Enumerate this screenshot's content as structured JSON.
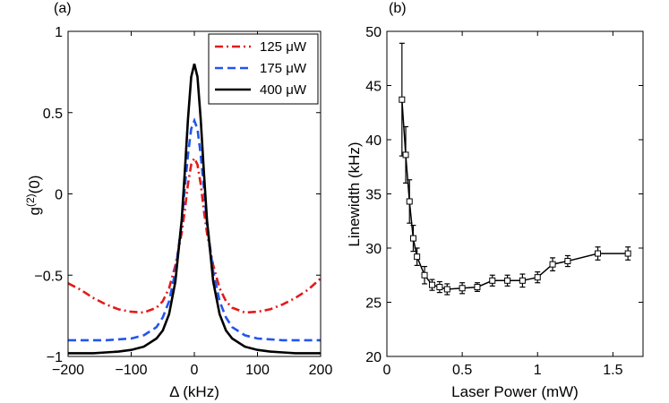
{
  "chart_data": [
    {
      "type": "line",
      "panel_label": "(a)",
      "xlabel": "Δ (kHz)",
      "ylabel_main": "g",
      "ylabel_sup": "(2)",
      "ylabel_tail": "(0)",
      "xlim": [
        -200,
        200
      ],
      "ylim": [
        -1,
        1
      ],
      "xticks": [
        -200,
        -100,
        0,
        100,
        200
      ],
      "xtick_labels": [
        "−200",
        "−100",
        "0",
        "100",
        "200"
      ],
      "yticks": [
        -1,
        -0.5,
        0,
        0.5,
        1
      ],
      "ytick_labels": [
        "−1",
        "−0.5",
        "0",
        "0.5",
        "1"
      ],
      "legend_position": "top-right",
      "series": [
        {
          "name": "125 μW",
          "color": "#e41a1a",
          "style": "dashdot",
          "x": [
            -200,
            -180,
            -160,
            -140,
            -120,
            -100,
            -80,
            -60,
            -50,
            -40,
            -30,
            -20,
            -15,
            -10,
            -5,
            0,
            5,
            10,
            15,
            20,
            30,
            40,
            50,
            60,
            80,
            100,
            120,
            140,
            160,
            180,
            200
          ],
          "y": [
            -0.55,
            -0.59,
            -0.64,
            -0.68,
            -0.71,
            -0.725,
            -0.73,
            -0.7,
            -0.66,
            -0.58,
            -0.44,
            -0.24,
            -0.1,
            0.06,
            0.18,
            0.22,
            0.18,
            0.06,
            -0.1,
            -0.24,
            -0.44,
            -0.58,
            -0.66,
            -0.7,
            -0.73,
            -0.725,
            -0.71,
            -0.68,
            -0.64,
            -0.59,
            -0.52
          ]
        },
        {
          "name": "175 μW",
          "color": "#2255ee",
          "style": "dashed",
          "x": [
            -200,
            -180,
            -160,
            -140,
            -120,
            -100,
            -80,
            -60,
            -50,
            -40,
            -30,
            -20,
            -15,
            -10,
            -5,
            0,
            5,
            10,
            15,
            20,
            30,
            40,
            50,
            60,
            80,
            100,
            120,
            140,
            160,
            180,
            200
          ],
          "y": [
            -0.9,
            -0.9,
            -0.9,
            -0.9,
            -0.895,
            -0.89,
            -0.87,
            -0.82,
            -0.76,
            -0.66,
            -0.48,
            -0.18,
            0.04,
            0.24,
            0.4,
            0.45,
            0.4,
            0.24,
            0.04,
            -0.18,
            -0.48,
            -0.66,
            -0.76,
            -0.82,
            -0.87,
            -0.89,
            -0.895,
            -0.9,
            -0.9,
            -0.9,
            -0.9
          ]
        },
        {
          "name": "400 μW",
          "color": "#000000",
          "style": "solid",
          "x": [
            -200,
            -180,
            -160,
            -140,
            -120,
            -100,
            -80,
            -60,
            -50,
            -40,
            -30,
            -20,
            -15,
            -10,
            -5,
            0,
            5,
            10,
            15,
            20,
            30,
            40,
            50,
            60,
            80,
            100,
            120,
            140,
            160,
            180,
            200
          ],
          "y": [
            -0.98,
            -0.98,
            -0.98,
            -0.975,
            -0.97,
            -0.96,
            -0.94,
            -0.89,
            -0.84,
            -0.74,
            -0.54,
            -0.16,
            0.14,
            0.46,
            0.72,
            0.8,
            0.72,
            0.46,
            0.14,
            -0.16,
            -0.54,
            -0.74,
            -0.84,
            -0.89,
            -0.94,
            -0.96,
            -0.97,
            -0.975,
            -0.98,
            -0.98,
            -0.98
          ]
        }
      ]
    },
    {
      "type": "line",
      "panel_label": "(b)",
      "xlabel": "Laser Power (mW)",
      "ylabel": "Linewidth (kHz)",
      "xlim": [
        0,
        1.7
      ],
      "ylim": [
        20,
        50
      ],
      "xticks": [
        0,
        0.5,
        1,
        1.5
      ],
      "xtick_labels": [
        "0",
        "0.5",
        "1",
        "1.5"
      ],
      "yticks": [
        20,
        25,
        30,
        35,
        40,
        45,
        50
      ],
      "ytick_labels": [
        "20",
        "25",
        "30",
        "35",
        "40",
        "45",
        "50"
      ],
      "series": [
        {
          "name": "Linewidth",
          "color": "#000000",
          "marker": "square",
          "x": [
            0.1,
            0.125,
            0.15,
            0.175,
            0.2,
            0.25,
            0.3,
            0.35,
            0.4,
            0.5,
            0.6,
            0.7,
            0.8,
            0.9,
            1.0,
            1.1,
            1.2,
            1.4,
            1.6
          ],
          "y": [
            43.7,
            38.6,
            34.3,
            30.9,
            29.2,
            27.5,
            26.6,
            26.4,
            26.2,
            26.3,
            26.4,
            27.0,
            27.0,
            27.0,
            27.3,
            28.5,
            28.8,
            29.5,
            29.5
          ],
          "err": [
            5.2,
            2.6,
            2.0,
            1.2,
            0.8,
            0.8,
            0.5,
            0.5,
            0.5,
            0.5,
            0.4,
            0.5,
            0.5,
            0.6,
            0.5,
            0.6,
            0.5,
            0.6,
            0.6
          ]
        }
      ]
    }
  ]
}
